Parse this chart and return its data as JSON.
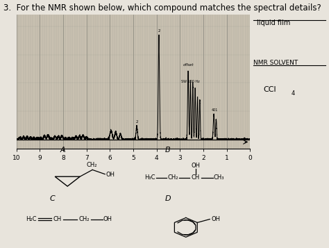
{
  "title": "3.  For the NMR shown below, which compound matches the spectral details?",
  "title_fontsize": 8.5,
  "bg_color": "#e8e4dc",
  "spectrum_bg": "#c8c0b0",
  "liquid_film": "liquid film",
  "nmr_solvent_label": "NMR SOLVENT",
  "nmr_solvent_value": "CCl4",
  "label_A": "A",
  "label_B": "B",
  "label_C": "C",
  "label_D": "D"
}
